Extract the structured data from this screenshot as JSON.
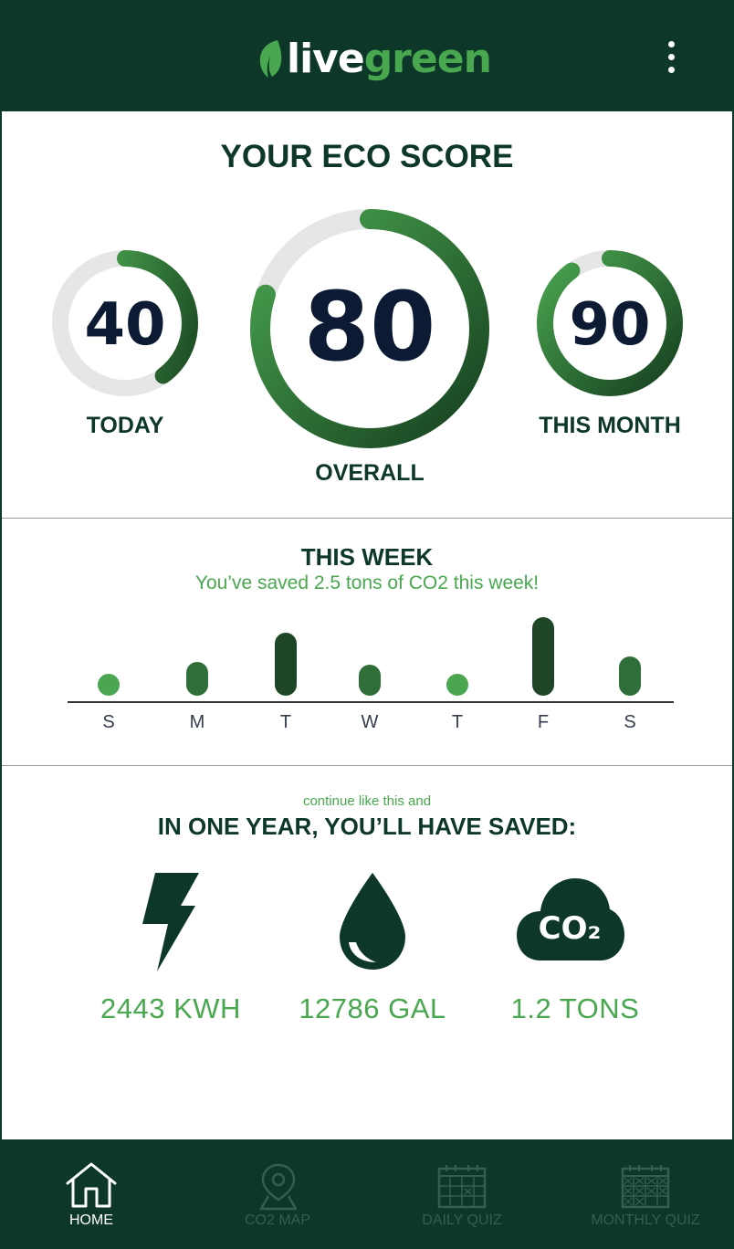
{
  "app": {
    "logo_live": "live",
    "logo_green": "green",
    "menu_icon": "more-vertical-icon"
  },
  "eco_score": {
    "title": "YOUR ECO SCORE",
    "today": {
      "value": "40",
      "label": "TODAY",
      "fraction": 0.4
    },
    "overall": {
      "value": "80",
      "label": "OVERALL",
      "fraction": 0.8
    },
    "month": {
      "value": "90",
      "label": "THIS MONTH",
      "fraction": 0.9
    }
  },
  "week": {
    "title": "THIS WEEK",
    "subtitle": "You’ve saved 2.5 tons of CO2 this week!",
    "days": [
      "S",
      "M",
      "T",
      "W",
      "T",
      "F",
      "S"
    ],
    "relative_values": [
      0.1,
      0.43,
      0.8,
      0.4,
      0.1,
      1.0,
      0.5
    ],
    "colors": [
      "#4aa650",
      "#2f6e38",
      "#1e4526",
      "#2f6e38",
      "#4aa650",
      "#1e4526",
      "#2f6e38"
    ]
  },
  "projection": {
    "note": "continue like this and",
    "title": "IN ONE YEAR, YOU’LL HAVE SAVED:",
    "stats": [
      {
        "icon": "lightning-bolt-icon",
        "value": "2443 KWH"
      },
      {
        "icon": "water-drop-icon",
        "value": "12786 GAL"
      },
      {
        "icon": "co2-cloud-icon",
        "value": "1.2 TONS",
        "icon_text": "CO₂"
      }
    ]
  },
  "nav": {
    "items": [
      {
        "label": "HOME",
        "icon": "home-icon",
        "active": true
      },
      {
        "label": "CO2 MAP",
        "icon": "map-pin-icon",
        "active": false
      },
      {
        "label": "DAILY QUIZ",
        "icon": "calendar-icon",
        "active": false
      },
      {
        "label": "MONTHLY QUIZ",
        "icon": "calendar-grid-icon",
        "active": false
      }
    ]
  },
  "colors": {
    "header_bg": "#0d3829",
    "accent_green": "#49a84f",
    "dark_green": "#0d3829",
    "score_text": "#0c1a33"
  }
}
